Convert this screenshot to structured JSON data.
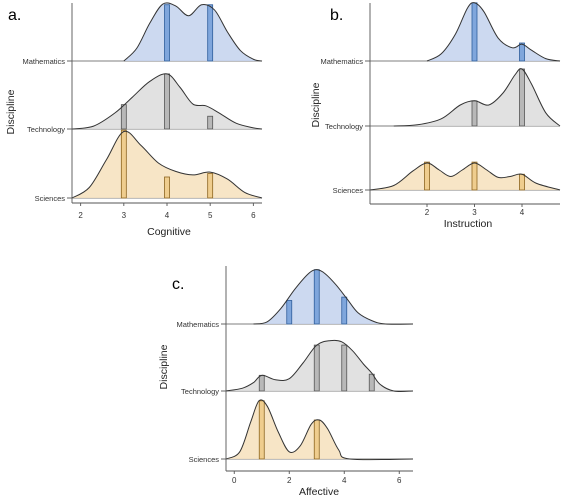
{
  "figure": {
    "colors": {
      "Mathematics": {
        "fill": "#c6d5ee",
        "bar": "#7fa6dc",
        "barStroke": "#2f5e9c"
      },
      "Technology": {
        "fill": "#dedede",
        "bar": "#b8b8b8",
        "barStroke": "#555555"
      },
      "Sciences": {
        "fill": "#f6e2c0",
        "bar": "#efcd8e",
        "barStroke": "#8c6420"
      }
    }
  },
  "chart_data": [
    {
      "id": "a",
      "panel_label": "a.",
      "type": "area",
      "subtype": "ridgeline density with histogram bars",
      "xlabel": "Cognitive",
      "ylabel": "Discipline",
      "xlim": [
        1.8,
        6.2
      ],
      "xticks": [
        2,
        3,
        4,
        5,
        6
      ],
      "categories": [
        "Mathematics",
        "Technology",
        "Sciences"
      ],
      "series": [
        {
          "name": "Mathematics",
          "x": [
            3.0,
            3.3,
            3.6,
            3.9,
            4.2,
            4.5,
            4.8,
            5.1,
            5.4,
            5.7,
            6.0,
            6.2
          ],
          "y": [
            0.0,
            0.22,
            0.65,
            0.98,
            0.95,
            0.78,
            0.97,
            0.88,
            0.5,
            0.18,
            0.03,
            0.0
          ],
          "bars": [
            {
              "x": 4,
              "h": 0.97
            },
            {
              "x": 5,
              "h": 0.97
            }
          ]
        },
        {
          "name": "Technology",
          "x": [
            1.8,
            2.3,
            2.8,
            3.2,
            3.6,
            4.0,
            4.3,
            4.6,
            4.9,
            5.2,
            5.6,
            6.0,
            6.2
          ],
          "y": [
            0.0,
            0.05,
            0.28,
            0.55,
            0.82,
            0.95,
            0.72,
            0.43,
            0.4,
            0.28,
            0.1,
            0.02,
            0.0
          ],
          "bars": [
            {
              "x": 3,
              "h": 0.42
            },
            {
              "x": 4,
              "h": 0.95
            },
            {
              "x": 5,
              "h": 0.22
            }
          ]
        },
        {
          "name": "Sciences",
          "x": [
            1.8,
            2.2,
            2.6,
            3.0,
            3.4,
            3.8,
            4.2,
            4.6,
            5.0,
            5.4,
            5.8,
            6.2
          ],
          "y": [
            0.0,
            0.15,
            0.55,
            0.95,
            0.75,
            0.5,
            0.38,
            0.33,
            0.37,
            0.27,
            0.08,
            0.0
          ],
          "bars": [
            {
              "x": 3,
              "h": 0.97
            },
            {
              "x": 4,
              "h": 0.3
            },
            {
              "x": 5,
              "h": 0.35
            }
          ]
        }
      ]
    },
    {
      "id": "b",
      "panel_label": "b.",
      "type": "area",
      "subtype": "ridgeline density with histogram bars",
      "xlabel": "Instruction",
      "ylabel": "Discipline",
      "xlim": [
        0.8,
        4.8
      ],
      "xticks": [
        2,
        3,
        4
      ],
      "categories": [
        "Mathematics",
        "Technology",
        "Sciences"
      ],
      "series": [
        {
          "name": "Mathematics",
          "x": [
            2.0,
            2.3,
            2.6,
            2.85,
            3.0,
            3.2,
            3.5,
            3.8,
            4.0,
            4.2,
            4.5,
            4.8
          ],
          "y": [
            0.0,
            0.12,
            0.45,
            0.88,
            0.97,
            0.82,
            0.38,
            0.22,
            0.28,
            0.18,
            0.04,
            0.0
          ],
          "bars": [
            {
              "x": 3,
              "h": 0.97
            },
            {
              "x": 4,
              "h": 0.3
            }
          ]
        },
        {
          "name": "Technology",
          "x": [
            1.3,
            1.8,
            2.3,
            2.7,
            3.0,
            3.3,
            3.6,
            3.85,
            4.0,
            4.2,
            4.5,
            4.8
          ],
          "y": [
            0.0,
            0.02,
            0.12,
            0.35,
            0.42,
            0.35,
            0.55,
            0.85,
            0.95,
            0.7,
            0.22,
            0.0
          ],
          "bars": [
            {
              "x": 3,
              "h": 0.42
            },
            {
              "x": 4,
              "h": 0.95
            }
          ]
        },
        {
          "name": "Sciences",
          "x": [
            0.8,
            1.3,
            1.7,
            2.0,
            2.25,
            2.5,
            2.75,
            3.0,
            3.25,
            3.5,
            3.75,
            4.0,
            4.3,
            4.8
          ],
          "y": [
            0.0,
            0.1,
            0.42,
            0.6,
            0.45,
            0.3,
            0.45,
            0.6,
            0.45,
            0.28,
            0.3,
            0.35,
            0.15,
            0.0
          ],
          "bars": [
            {
              "x": 2,
              "h": 0.62
            },
            {
              "x": 3,
              "h": 0.62
            },
            {
              "x": 4,
              "h": 0.35
            }
          ]
        }
      ]
    },
    {
      "id": "c",
      "panel_label": "c.",
      "type": "area",
      "subtype": "ridgeline density with histogram bars",
      "xlabel": "Affective",
      "ylabel": "Discipline",
      "xlim": [
        -0.3,
        6.5
      ],
      "xticks": [
        0,
        2,
        4,
        6
      ],
      "categories": [
        "Mathematics",
        "Technology",
        "Sciences"
      ],
      "series": [
        {
          "name": "Mathematics",
          "x": [
            0.7,
            1.2,
            1.7,
            2.2,
            2.7,
            3.0,
            3.3,
            3.7,
            4.1,
            4.5,
            5.0,
            5.5,
            6.5
          ],
          "y": [
            0.0,
            0.04,
            0.28,
            0.62,
            0.9,
            0.97,
            0.9,
            0.7,
            0.45,
            0.2,
            0.06,
            0.0,
            0.0
          ],
          "bars": [
            {
              "x": 2,
              "h": 0.42
            },
            {
              "x": 3,
              "h": 0.97
            },
            {
              "x": 4,
              "h": 0.48
            }
          ]
        },
        {
          "name": "Technology",
          "x": [
            -0.3,
            0.3,
            0.7,
            1.0,
            1.5,
            2.0,
            2.5,
            3.0,
            3.5,
            3.9,
            4.3,
            4.7,
            5.0,
            5.3,
            5.8,
            6.5
          ],
          "y": [
            0.0,
            0.05,
            0.15,
            0.28,
            0.2,
            0.22,
            0.5,
            0.82,
            0.9,
            0.88,
            0.72,
            0.48,
            0.32,
            0.12,
            0.0,
            0.0
          ],
          "bars": [
            {
              "x": 1,
              "h": 0.28
            },
            {
              "x": 3,
              "h": 0.82
            },
            {
              "x": 4,
              "h": 0.82
            },
            {
              "x": 5,
              "h": 0.3
            }
          ]
        },
        {
          "name": "Sciences",
          "x": [
            -0.3,
            0.2,
            0.6,
            0.9,
            1.2,
            1.6,
            2.0,
            2.4,
            2.8,
            3.1,
            3.4,
            3.8,
            4.2,
            6.5
          ],
          "y": [
            0.0,
            0.12,
            0.62,
            0.97,
            0.88,
            0.45,
            0.12,
            0.22,
            0.58,
            0.65,
            0.5,
            0.15,
            0.0,
            0.0
          ],
          "bars": [
            {
              "x": 1,
              "h": 0.97
            },
            {
              "x": 3,
              "h": 0.65
            }
          ]
        }
      ]
    }
  ]
}
